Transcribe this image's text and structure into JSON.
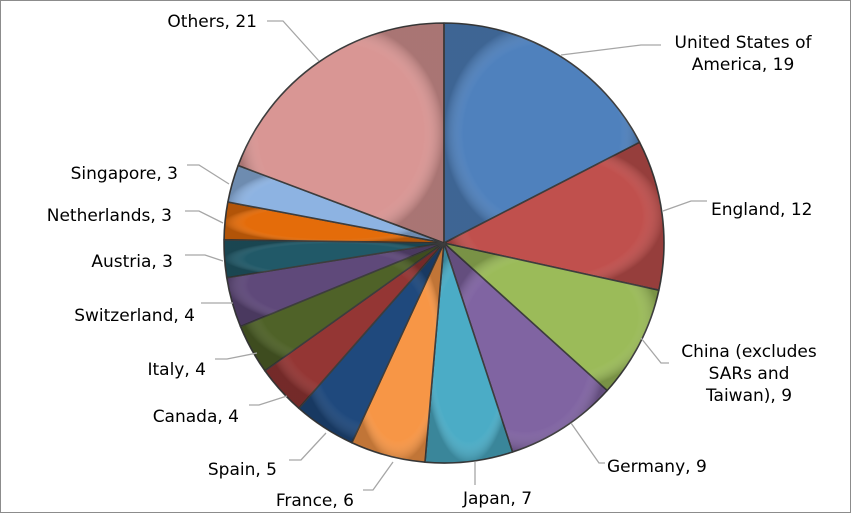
{
  "chart_data": {
    "type": "pie",
    "title": "",
    "slices": [
      {
        "label": [
          "United States of",
          "America, 19"
        ],
        "value": 19,
        "color": "#4f81bd"
      },
      {
        "label": [
          "England, 12"
        ],
        "value": 12,
        "color": "#c0504d"
      },
      {
        "label": [
          "China (excludes",
          "SARs and",
          "Taiwan), 9"
        ],
        "value": 9,
        "color": "#9bbb59"
      },
      {
        "label": [
          "Germany, 9"
        ],
        "value": 9,
        "color": "#8064a2"
      },
      {
        "label": [
          "Japan, 7"
        ],
        "value": 7,
        "color": "#4bacc6"
      },
      {
        "label": [
          "France, 6"
        ],
        "value": 6,
        "color": "#f79646"
      },
      {
        "label": [
          "Spain, 5"
        ],
        "value": 5,
        "color": "#1f497d"
      },
      {
        "label": [
          "Canada, 4"
        ],
        "value": 4,
        "color": "#943634"
      },
      {
        "label": [
          "Italy, 4"
        ],
        "value": 4,
        "color": "#4f6228"
      },
      {
        "label": [
          "Switzerland, 4"
        ],
        "value": 4,
        "color": "#5f497a"
      },
      {
        "label": [
          "Austria, 3"
        ],
        "value": 3,
        "color": "#215968"
      },
      {
        "label": [
          "Netherlands, 3"
        ],
        "value": 3,
        "color": "#e46c0a"
      },
      {
        "label": [
          "Singapore, 3"
        ],
        "value": 3,
        "color": "#8db3e2"
      },
      {
        "label": [
          "Others, 21"
        ],
        "value": 21,
        "color": "#d99694"
      }
    ]
  }
}
